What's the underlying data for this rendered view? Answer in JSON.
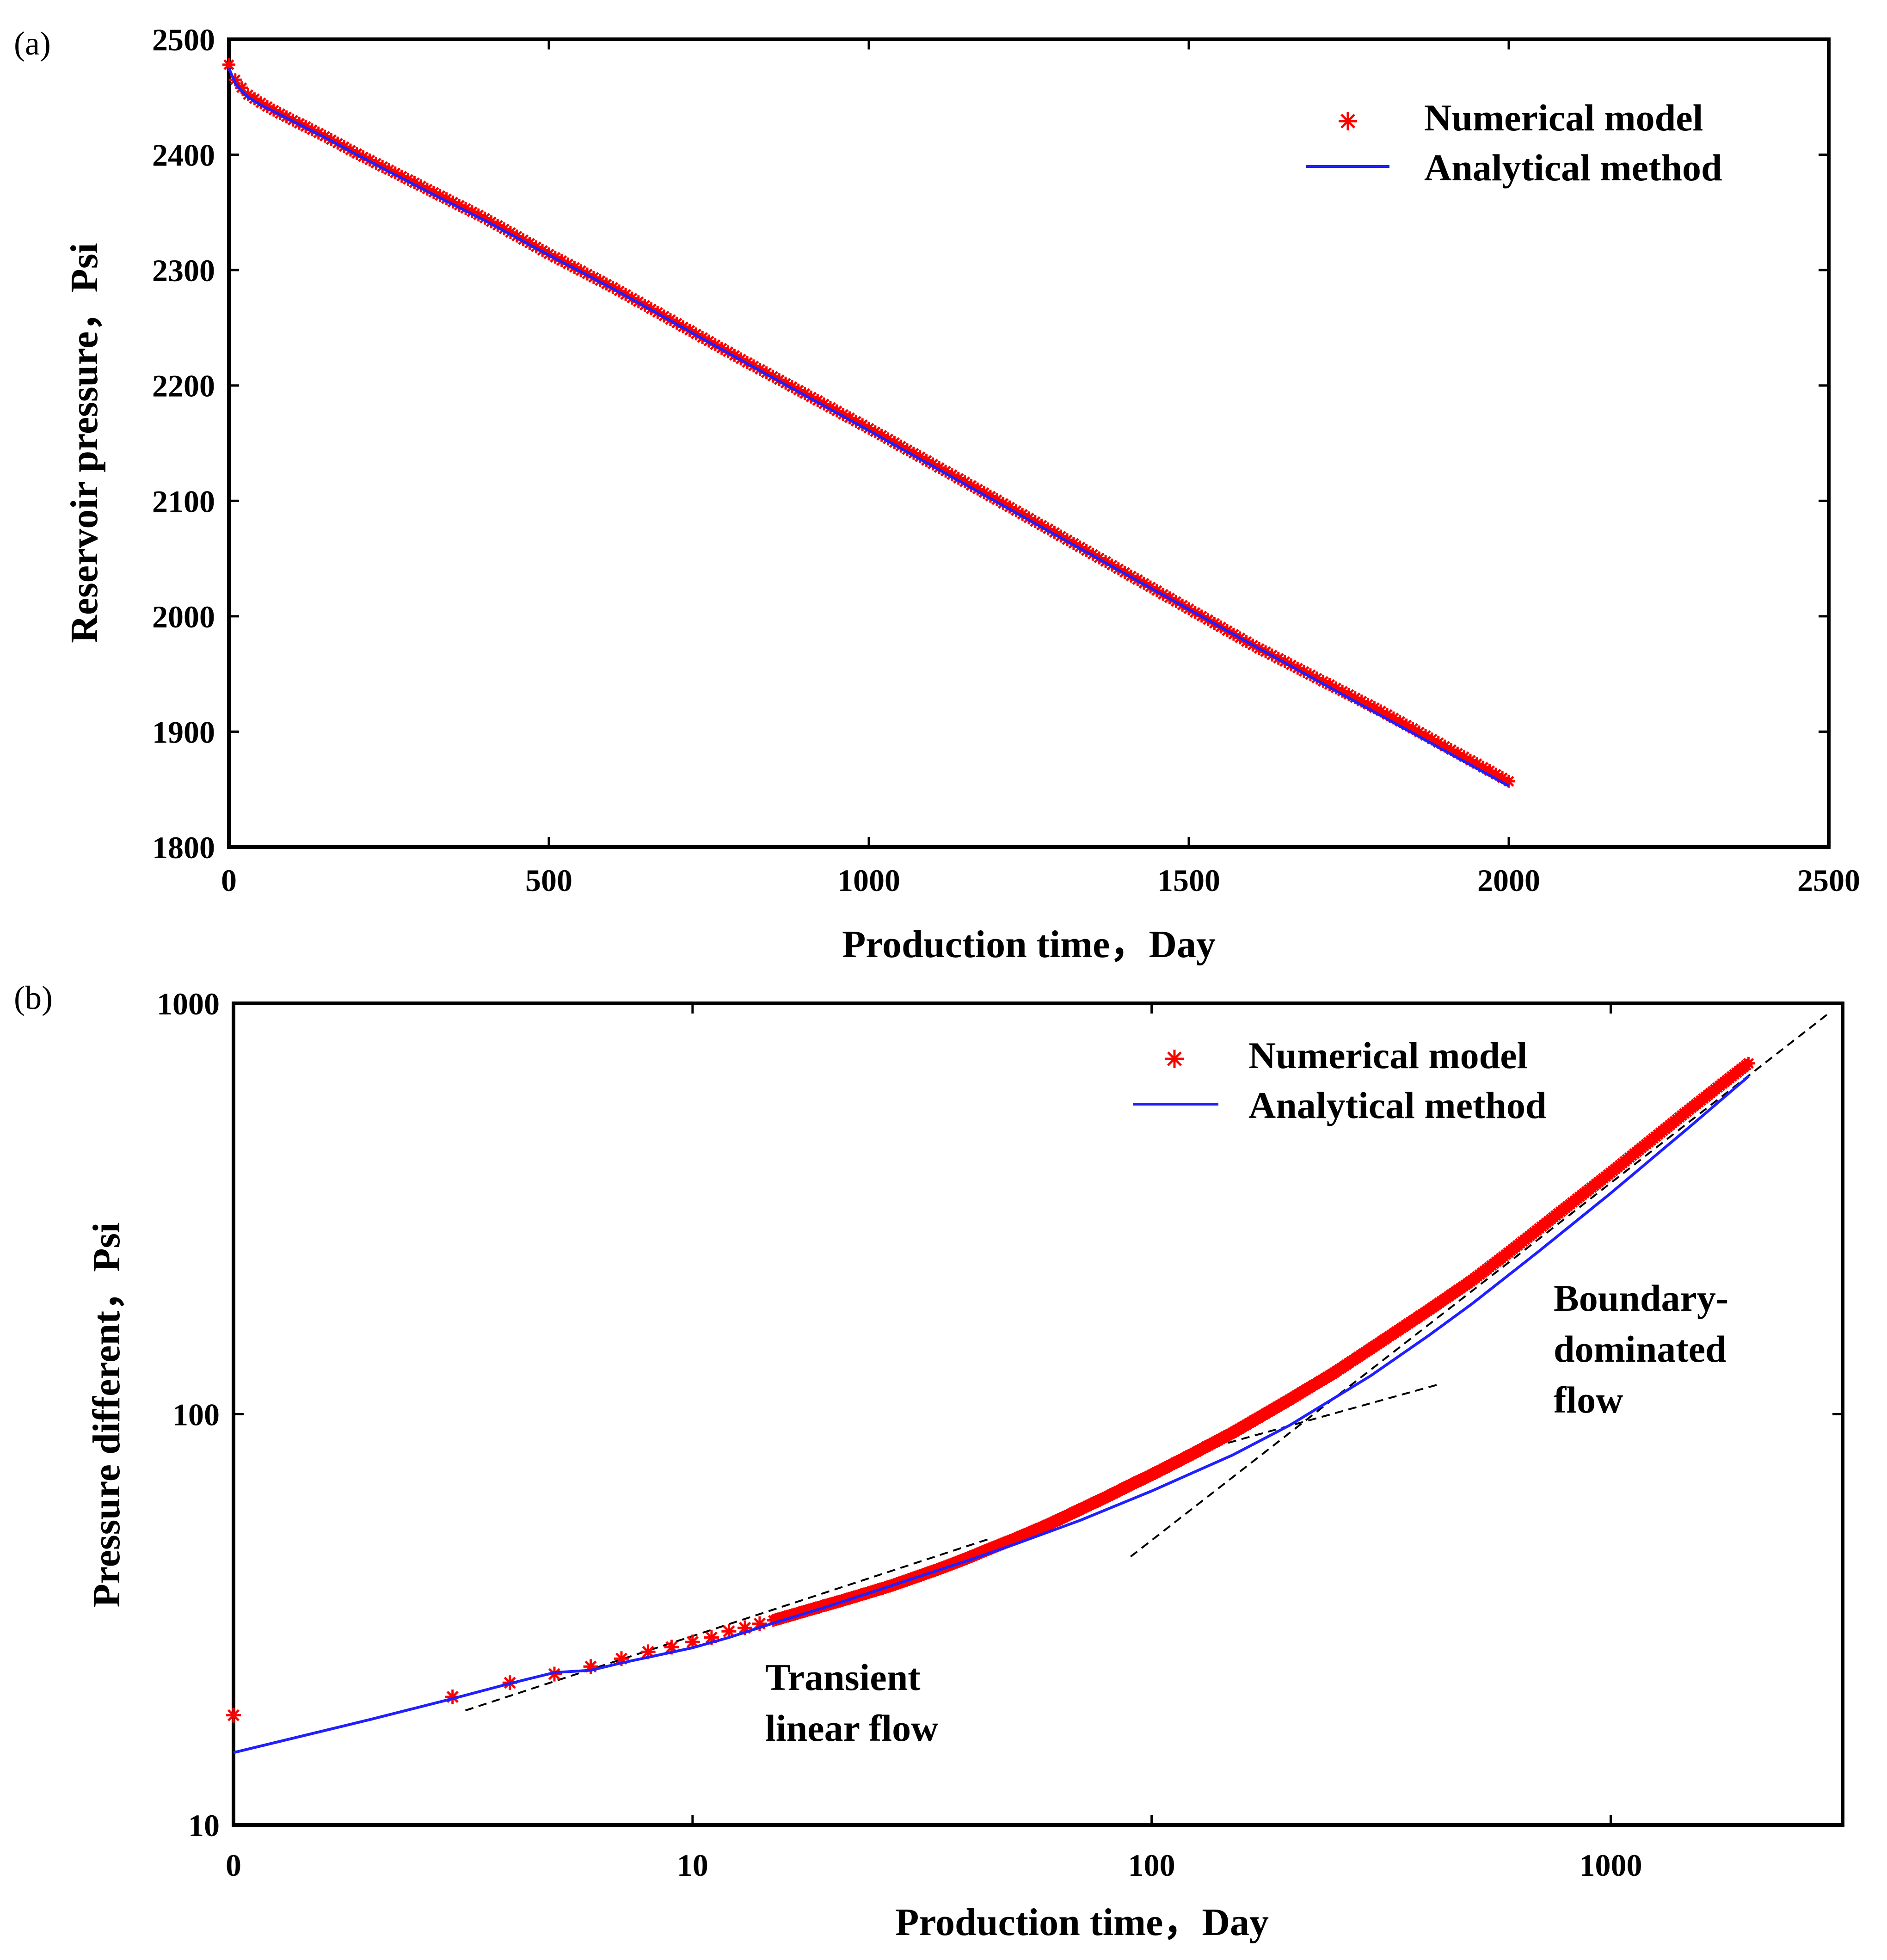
{
  "colors": {
    "numerical": "#ff0000",
    "analytical": "#1f1fff",
    "guide": "#000000"
  },
  "chart_data": [
    {
      "panel_label": "(a)",
      "type": "line",
      "xlabel": "Production time，Day",
      "ylabel": "Reservoir pressure，Psi",
      "xlim": [
        0,
        2500
      ],
      "ylim": [
        1800,
        2500
      ],
      "x_ticks": [
        0,
        500,
        1000,
        1500,
        2000,
        2500
      ],
      "y_ticks": [
        1800,
        1900,
        2000,
        2100,
        2200,
        2300,
        2400,
        2500
      ],
      "legend": {
        "position": "top-right",
        "entries": [
          "Numerical model",
          "Analytical method"
        ]
      },
      "series": [
        {
          "name": "Numerical model",
          "style": "marker-asterisk",
          "x": [
            0,
            5,
            10,
            20,
            30,
            50,
            75,
            100,
            150,
            200,
            300,
            400,
            500,
            600,
            800,
            1000,
            1200,
            1400,
            1600,
            1800,
            2000
          ],
          "y": [
            2478,
            2472,
            2465,
            2458,
            2452,
            2445,
            2437,
            2430,
            2416,
            2401,
            2373,
            2345,
            2314,
            2285,
            2223,
            2163,
            2101,
            2038,
            1975,
            1918,
            1857
          ]
        },
        {
          "name": "Analytical method",
          "style": "line",
          "x": [
            0,
            10,
            20,
            30,
            50,
            75,
            100,
            150,
            200,
            300,
            400,
            500,
            600,
            800,
            1000,
            1200,
            1400,
            1600,
            1800,
            2000
          ],
          "y": [
            2475,
            2462,
            2455,
            2450,
            2443,
            2436,
            2429,
            2415,
            2400,
            2371,
            2343,
            2313,
            2284,
            2222,
            2161,
            2099,
            2037,
            1975,
            1914,
            1853
          ]
        }
      ]
    },
    {
      "panel_label": "(b)",
      "type": "line",
      "xscale": "log",
      "yscale": "log",
      "xlabel": "Production time，Day",
      "ylabel": "Pressure different，Psi",
      "xlim": [
        1,
        3200
      ],
      "ylim": [
        10,
        1000
      ],
      "x_ticks": [
        1,
        10,
        100,
        1000
      ],
      "x_tick_labels": [
        "0",
        "10",
        "100",
        "1000"
      ],
      "y_ticks": [
        10,
        100,
        1000
      ],
      "y_tick_labels": [
        "10",
        "100",
        "1000"
      ],
      "legend": {
        "position": "top-right",
        "entries": [
          "Numerical model",
          "Analytical method"
        ]
      },
      "annotations": [
        {
          "text_lines": [
            "Transient",
            "linear flow"
          ],
          "at": [
            20,
            18
          ]
        },
        {
          "text_lines": [
            "Boundary-",
            "dominated",
            "flow"
          ],
          "at": [
            900,
            150
          ]
        }
      ],
      "series": [
        {
          "name": "Numerical model",
          "style": "marker-asterisk",
          "x": [
            1,
            3,
            4,
            5,
            6,
            7,
            8,
            9,
            10,
            11,
            12,
            13,
            14,
            15,
            17,
            19,
            21,
            24,
            27,
            30,
            35,
            40,
            45,
            50,
            60,
            70,
            80,
            90,
            100,
            120,
            150,
            200,
            250,
            300,
            400,
            500,
            600,
            800,
            1000,
            1200,
            1500,
            2000
          ],
          "y": [
            18.5,
            20.5,
            22.2,
            23.3,
            24.3,
            25.4,
            26.4,
            27.1,
            27.9,
            28.6,
            29.6,
            30.2,
            30.9,
            31.5,
            32.8,
            34.0,
            35.1,
            36.7,
            38.2,
            39.8,
            42.3,
            44.8,
            47.3,
            49.6,
            54.1,
            58.7,
            63.0,
            67.3,
            71.2,
            79.0,
            90.1,
            108.6,
            126.2,
            144.4,
            178.8,
            212.1,
            247.8,
            318.9,
            387.2,
            456.0,
            557.1,
            715.7
          ]
        },
        {
          "name": "Analytical method",
          "style": "line",
          "x": [
            1,
            2,
            3,
            4,
            5,
            6,
            7,
            8,
            10,
            12,
            15,
            20,
            25,
            30,
            40,
            50,
            70,
            100,
            150,
            200,
            300,
            400,
            500,
            700,
            1000,
            1500,
            2000
          ],
          "y": [
            15.0,
            18.1,
            20.3,
            22.1,
            23.5,
            23.8,
            24.8,
            25.6,
            27.0,
            28.6,
            31.0,
            34.2,
            37.1,
            39.7,
            44.1,
            48.1,
            55.2,
            65.0,
            79.5,
            94.0,
            124.0,
            155.0,
            186.0,
            250.0,
            345.0,
            505.0,
            665.0
          ]
        },
        {
          "name": "transient-guide",
          "style": "dashed",
          "x": [
            3.2,
            45
          ],
          "y": [
            19.0,
            50.0
          ]
        },
        {
          "name": "boundary-guide-low",
          "style": "dashed",
          "x": [
            120,
            420
          ],
          "y": [
            80.0,
            118.0
          ]
        },
        {
          "name": "boundary-guide-high",
          "style": "dashed",
          "x": [
            90,
            3000
          ],
          "y": [
            45.0,
            950.0
          ]
        }
      ]
    }
  ]
}
